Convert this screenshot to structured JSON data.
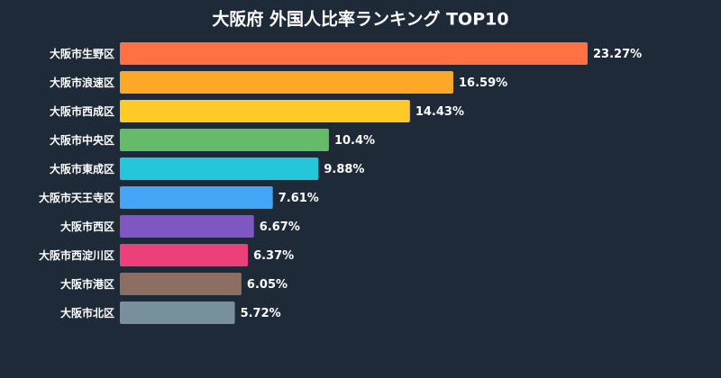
{
  "chart_data": {
    "type": "hbar",
    "title": "大阪府 外国人比率ランキング TOP10",
    "categories": [
      "大阪市生野区",
      "大阪市浪速区",
      "大阪市西成区",
      "大阪市中央区",
      "大阪市東成区",
      "大阪市天王寺区",
      "大阪市西区",
      "大阪市西淀川区",
      "大阪市港区",
      "大阪市北区"
    ],
    "values": [
      23.27,
      16.59,
      14.43,
      10.4,
      9.88,
      7.61,
      6.67,
      6.37,
      6.05,
      5.72
    ],
    "value_labels": [
      "23.27%",
      "16.59%",
      "14.43%",
      "10.4%",
      "9.88%",
      "7.61%",
      "6.67%",
      "6.37%",
      "6.05%",
      "5.72%"
    ],
    "colors": [
      "#ff7043",
      "#ffa726",
      "#ffca28",
      "#66bb6a",
      "#26c6da",
      "#42a5f5",
      "#7e57c2",
      "#ec407a",
      "#8d6e63",
      "#78909c"
    ]
  }
}
